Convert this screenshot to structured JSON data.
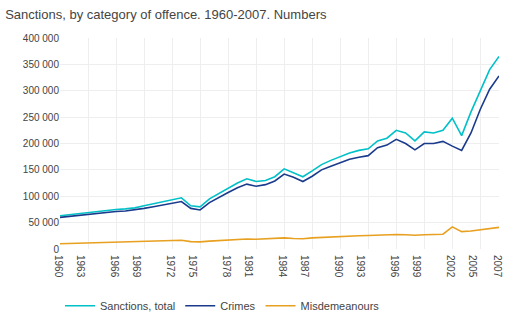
{
  "chart_data": {
    "type": "line",
    "title": "Sanctions, by category of offence. 1960-2007. Numbers",
    "x": [
      1960,
      1961,
      1962,
      1963,
      1964,
      1965,
      1966,
      1967,
      1968,
      1969,
      1970,
      1971,
      1972,
      1973,
      1974,
      1975,
      1976,
      1977,
      1978,
      1979,
      1980,
      1981,
      1982,
      1983,
      1984,
      1985,
      1986,
      1987,
      1988,
      1989,
      1990,
      1991,
      1992,
      1993,
      1994,
      1995,
      1996,
      1997,
      1998,
      1999,
      2000,
      2001,
      2002,
      2003,
      2004,
      2005,
      2006,
      2007
    ],
    "series": [
      {
        "name": "Sanctions, total",
        "color": "#00c0c8",
        "values": [
          63000,
          65000,
          68000,
          70000,
          72000,
          73000,
          75000,
          76000,
          78000,
          82000,
          86000,
          90000,
          93000,
          97000,
          82000,
          80000,
          95000,
          105000,
          115000,
          125000,
          133000,
          128000,
          130000,
          137000,
          152000,
          145000,
          137000,
          148000,
          160000,
          168000,
          175000,
          182000,
          187000,
          190000,
          205000,
          210000,
          225000,
          220000,
          205000,
          222000,
          220000,
          225000,
          248000,
          215000,
          260000,
          300000,
          340000,
          365000
        ]
      },
      {
        "name": "Crimes",
        "color": "#1a3a8c",
        "values": [
          60000,
          62000,
          64000,
          66000,
          68000,
          69000,
          71000,
          72000,
          74000,
          77000,
          80000,
          83000,
          86000,
          90000,
          77000,
          74000,
          88000,
          98000,
          107000,
          116000,
          123000,
          119000,
          122000,
          129000,
          142000,
          136000,
          128000,
          138000,
          150000,
          157000,
          163000,
          170000,
          174000,
          177000,
          192000,
          197000,
          208000,
          200000,
          188000,
          200000,
          200000,
          204000,
          195000,
          187000,
          220000,
          265000,
          303000,
          328000
        ]
      },
      {
        "name": "Misdemeanours",
        "color": "#e8a020",
        "values": [
          10000,
          10500,
          11000,
          11500,
          12000,
          12500,
          13000,
          13500,
          14000,
          14500,
          15000,
          15500,
          16000,
          16500,
          14000,
          13500,
          15000,
          16000,
          17000,
          18000,
          19000,
          18500,
          19000,
          20000,
          21000,
          20000,
          19500,
          21000,
          22000,
          23000,
          24000,
          24500,
          25000,
          25500,
          26500,
          27000,
          27500,
          27000,
          26000,
          27000,
          27000,
          28000,
          42000,
          33000,
          34000,
          36000,
          38000,
          41000
        ]
      }
    ],
    "xlim": [
      1960,
      2007
    ],
    "xticks": [
      1960,
      1963,
      1966,
      1969,
      1972,
      1975,
      1978,
      1981,
      1984,
      1987,
      1990,
      1993,
      1996,
      1999,
      2002,
      2005,
      2007
    ],
    "ylim": [
      0,
      400000
    ],
    "yticks": [
      0,
      {
        "value": 50000,
        "label": "50 000"
      },
      {
        "value": 100000,
        "label": "100 000"
      },
      {
        "value": 150000,
        "label": "150 000"
      },
      {
        "value": 200000,
        "label": "200 000"
      },
      {
        "value": 250000,
        "label": "250 000"
      },
      {
        "value": 300000,
        "label": "300 000"
      },
      {
        "value": 350000,
        "label": "350 000"
      },
      {
        "value": 400000,
        "label": "400 000"
      }
    ],
    "grid": true,
    "legend": "bottom"
  }
}
